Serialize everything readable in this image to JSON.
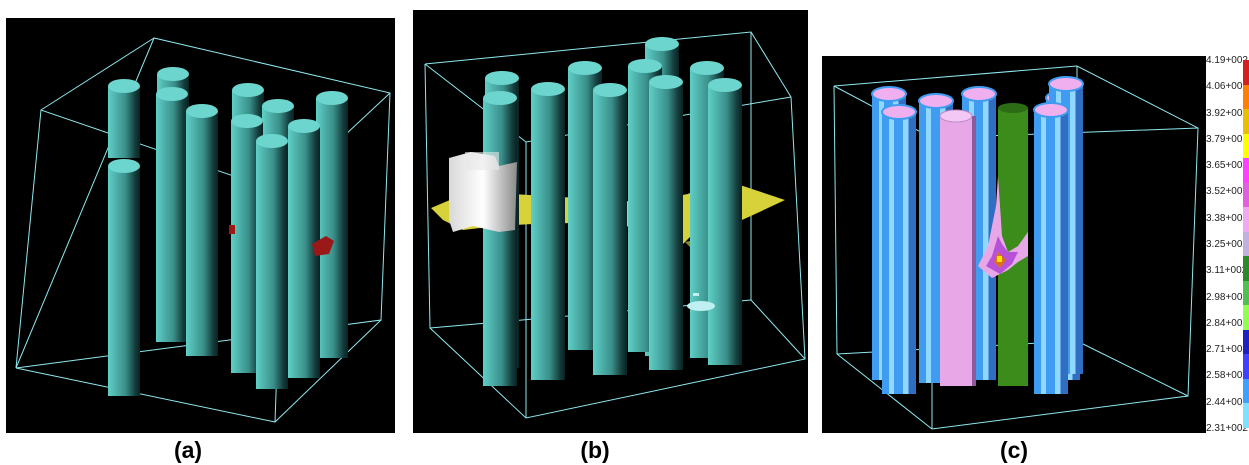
{
  "captions": [
    "(a)",
    "(b)",
    "(c)"
  ],
  "legend": {
    "values": [
      "4.19+002",
      "4.06+002",
      "3.92+002",
      "3.79+002",
      "3.65+002",
      "3.52+002",
      "3.38+002",
      "3.25+002",
      "3.11+002",
      "2.98+002",
      "2.84+002",
      "2.71+002",
      "2.58+002",
      "2.44+002",
      "2.31+002"
    ],
    "colors": [
      "#d42020",
      "#ff8000",
      "#e8c000",
      "#ffff00",
      "#ff40ff",
      "#e060e0",
      "#f0a8f0",
      "#c0b0e0",
      "#2a8a2a",
      "#50c050",
      "#90ff50",
      "#2020c0",
      "#4040ff",
      "#40a0ff",
      "#80e0ff"
    ]
  },
  "colors": {
    "rod_teal": "#5ec8c0",
    "rod_blue": "#3f9cf0",
    "rod_lilac": "#e8a8e8",
    "rod_green": "#3c8c1c",
    "box_line": "#8ee8ee",
    "debris_yellow": "#d8d23a",
    "debris_red": "#9a1818"
  }
}
